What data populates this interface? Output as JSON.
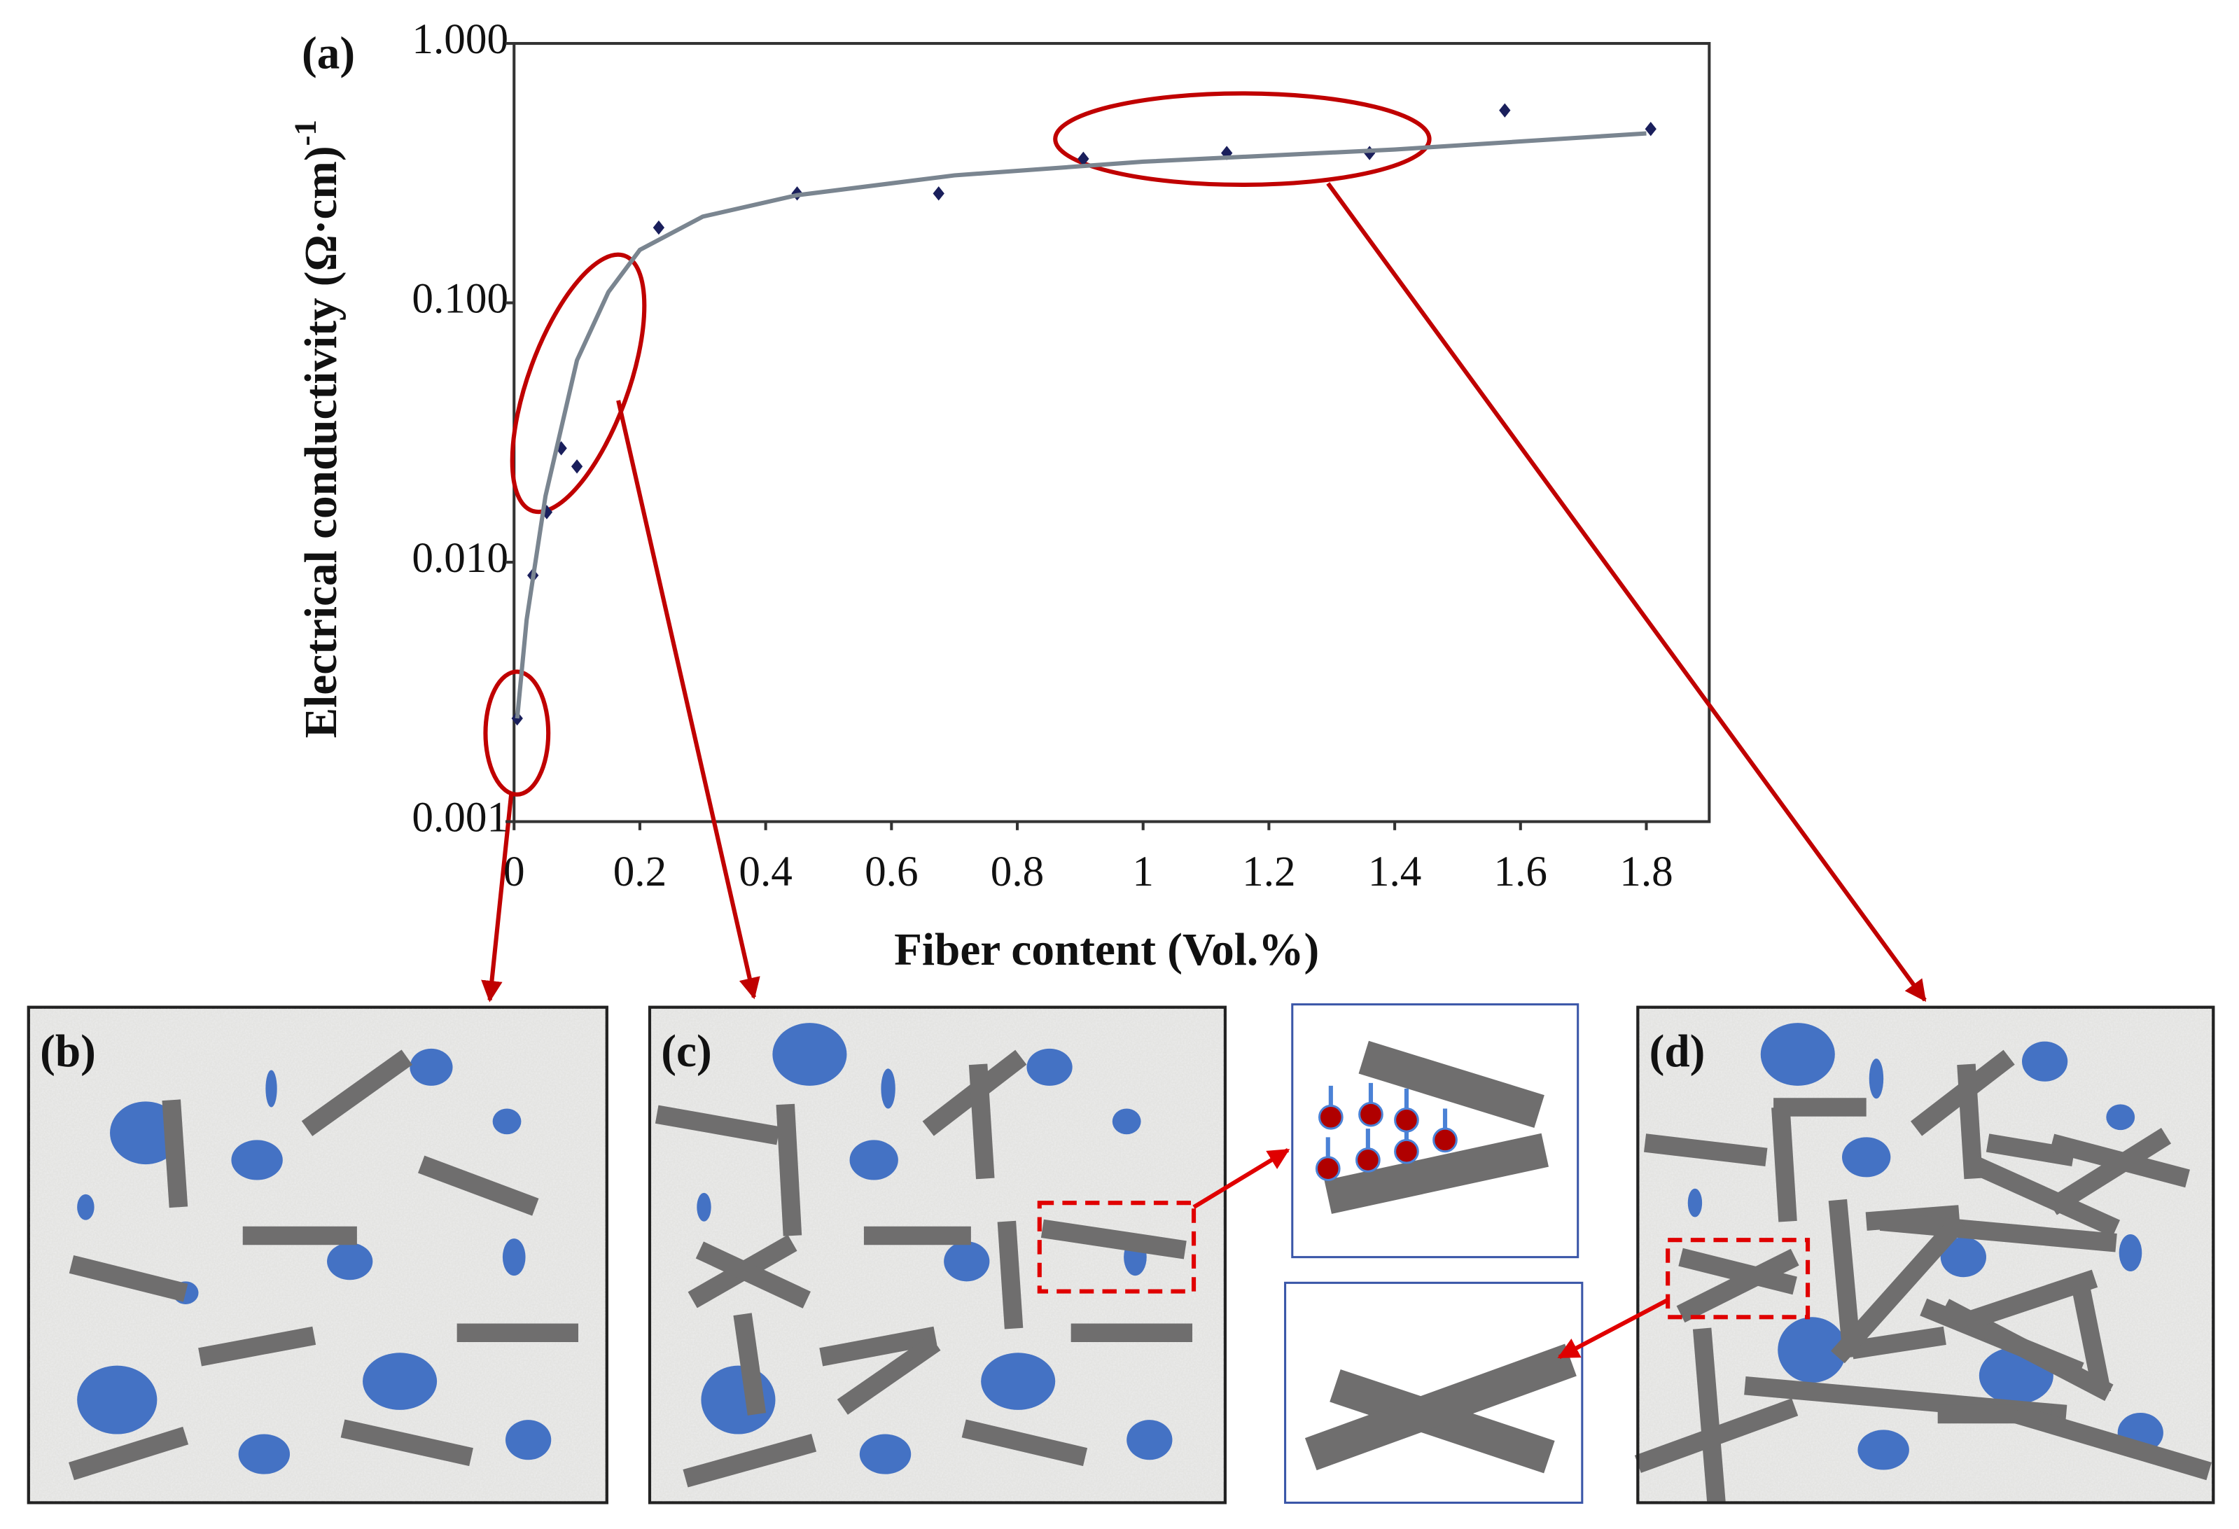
{
  "chart_data": {
    "type": "scatter",
    "title": "(a)",
    "xlabel": "Fiber content (Vol.%)",
    "ylabel": "Electrical conductivity (Ω·cm)",
    "ylabel_sup": "-1",
    "log": true,
    "grid": false,
    "xlim": [
      0,
      1.9
    ],
    "ylim": [
      0.001,
      1
    ],
    "xticks": [
      0,
      0.2,
      0.4,
      0.6,
      0.8,
      1,
      1.2,
      1.4,
      1.6,
      1.8
    ],
    "yticks": [
      {
        "value": 0.001,
        "label": "0.001"
      },
      {
        "value": 0.01,
        "label": "0.010"
      },
      {
        "value": 0.1,
        "label": "0.100"
      },
      {
        "value": 1,
        "label": "1.000"
      }
    ],
    "series": [
      {
        "color": "#1a1f5c",
        "x": [
          0.005,
          0.03,
          0.052,
          0.075,
          0.1,
          0.23,
          0.45,
          0.675,
          0.905,
          1.133,
          1.36,
          1.575,
          1.807
        ],
        "values": [
          0.0025,
          0.0089,
          0.0156,
          0.0275,
          0.0234,
          0.195,
          0.264,
          0.264,
          0.359,
          0.378,
          0.378,
          0.552,
          0.468
        ]
      },
      {
        "color": "#7a8590",
        "line": true,
        "x": [
          0.005,
          0.02,
          0.05,
          0.1,
          0.15,
          0.2,
          0.3,
          0.45,
          0.7,
          1.0,
          1.4,
          1.8
        ],
        "values": [
          0.0025,
          0.006,
          0.018,
          0.06,
          0.11,
          0.16,
          0.215,
          0.26,
          0.31,
          0.35,
          0.39,
          0.45
        ]
      }
    ]
  },
  "panels": [
    "(b)",
    "(c)",
    "(d)"
  ]
}
